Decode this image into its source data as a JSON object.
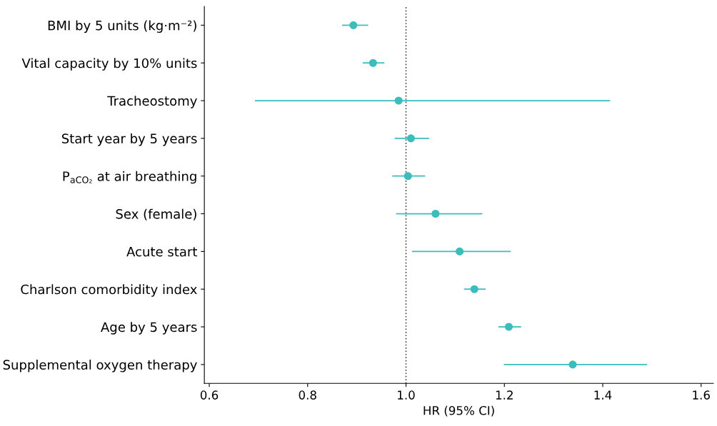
{
  "chart_data": {
    "type": "scatter",
    "orientation": "horizontal",
    "xlabel": "HR (95% CI)",
    "categories": [
      "BMI by 5 units (kg·m⁻²)",
      "Vital capacity by 10% units",
      "Tracheostomy",
      "Start year by 5 years",
      "P$_{aCO₂}$ at air breathing",
      "Sex (female)",
      "Acute start",
      "Charlson comorbidity index",
      "Age by 5 years",
      "Supplemental oxygen therapy"
    ],
    "series": [
      {
        "color": "#3bbdbb",
        "values": [
          0.893,
          0.933,
          0.985,
          1.01,
          1.004,
          1.06,
          1.109,
          1.139,
          1.209,
          1.339
        ],
        "errors": [
          [
            0.87,
            0.923
          ],
          [
            0.912,
            0.956
          ],
          [
            0.693,
            1.415
          ],
          [
            0.977,
            1.047
          ],
          [
            0.972,
            1.039
          ],
          [
            0.98,
            1.155
          ],
          [
            1.012,
            1.213
          ],
          [
            1.118,
            1.162
          ],
          [
            1.188,
            1.234
          ],
          [
            1.199,
            1.49
          ]
        ]
      }
    ],
    "xlim": [
      0.59,
      1.625
    ],
    "xticks": [
      {
        "value": 0.6,
        "label": "0.6"
      },
      {
        "value": 0.8,
        "label": "0.8"
      },
      {
        "value": 1.0,
        "label": "1.0"
      },
      {
        "value": 1.2,
        "label": "1.2"
      },
      {
        "value": 1.4,
        "label": "1.4"
      },
      {
        "value": 1.6,
        "label": "1.6"
      }
    ],
    "ref_lines": [
      {
        "axis": "x",
        "value": 1.0,
        "color": "#444444",
        "line_style": "dotted"
      }
    ],
    "marker": "circle",
    "grid": false,
    "legend": false
  }
}
